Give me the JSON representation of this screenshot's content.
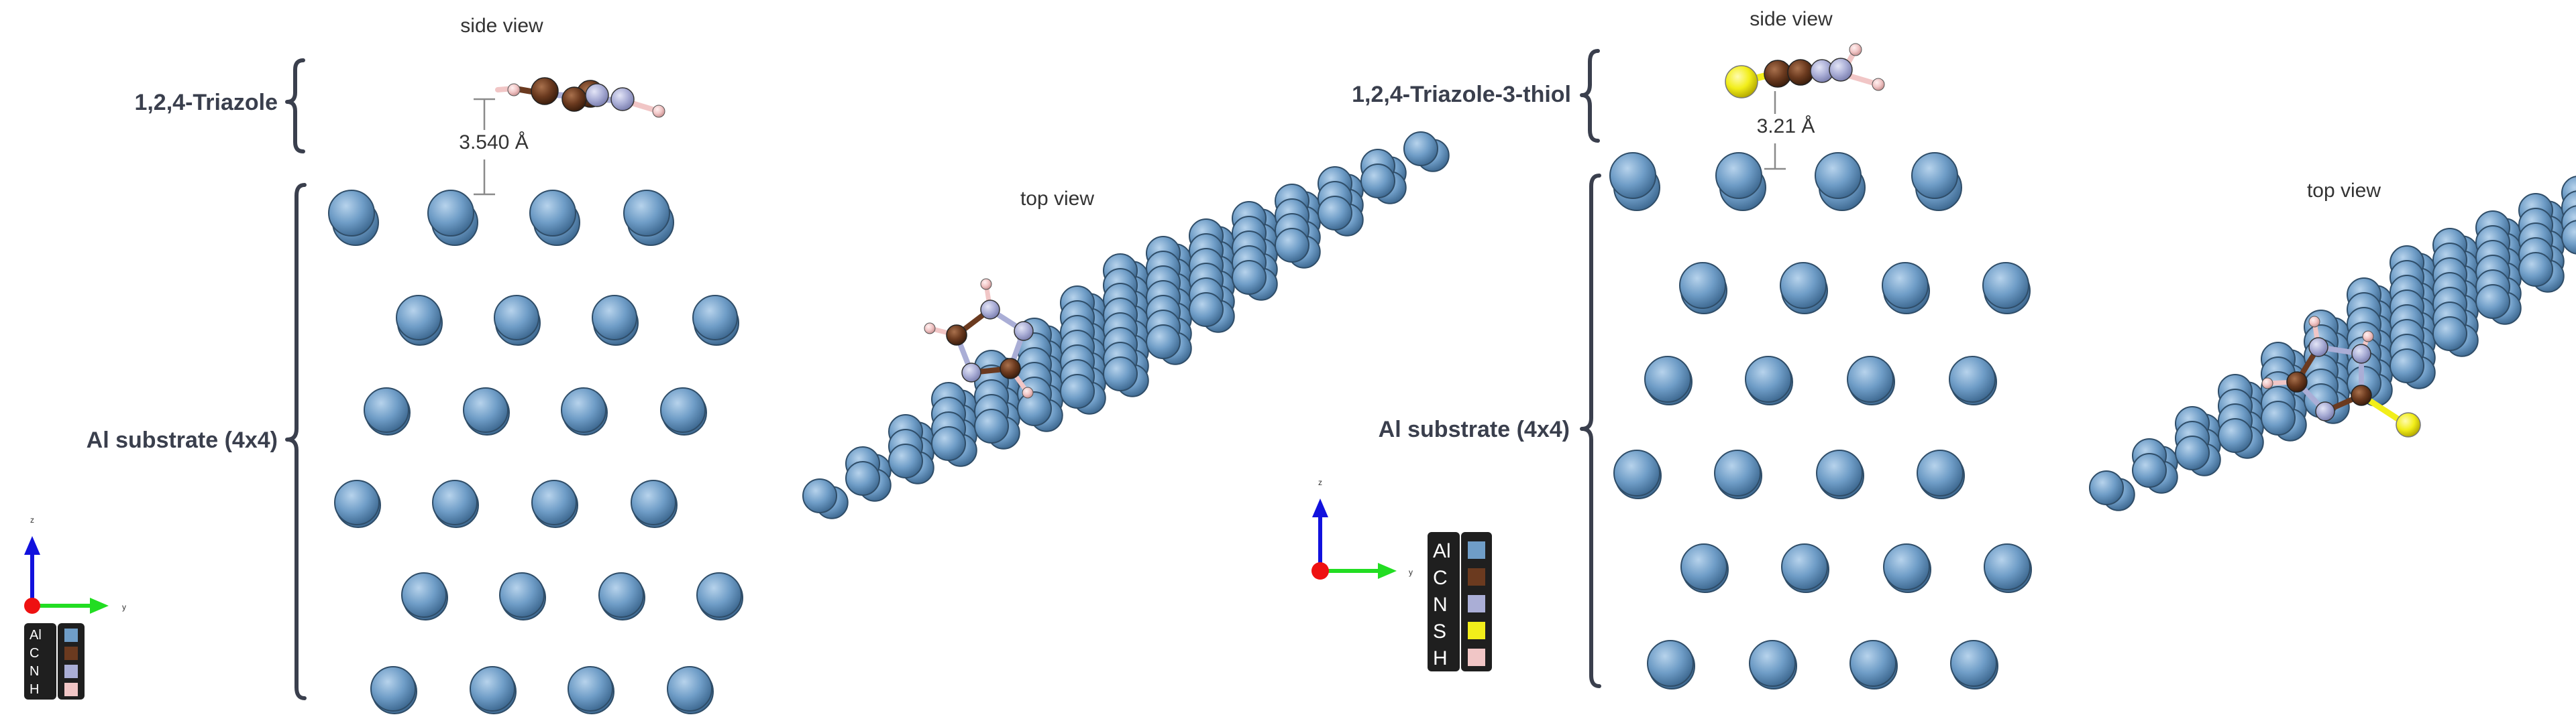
{
  "colors": {
    "Al": "#6f9dc7",
    "C": "#6b3a1f",
    "N": "#aaaed6",
    "S": "#f2ee1a",
    "H": "#f1c6c6",
    "x_axis": "#ee1111",
    "y_axis": "#22dd22",
    "z_axis": "#1111dd"
  },
  "left_panel": {
    "molecule_label": "1,2,4-Triazole",
    "substrate_label": "Al substrate (4x4)",
    "side_view_title": "side view",
    "top_view_title": "top view",
    "distance_label": "3.540 Å",
    "axes": {
      "z": "z",
      "y": "y"
    },
    "legend": [
      {
        "symbol": "Al",
        "element": "Al"
      },
      {
        "symbol": "C",
        "element": "C"
      },
      {
        "symbol": "N",
        "element": "N"
      },
      {
        "symbol": "H",
        "element": "H"
      }
    ]
  },
  "right_panel": {
    "molecule_label": "1,2,4-Triazole-3-thiol",
    "substrate_label": "Al substrate (4x4)",
    "side_view_title": "side view",
    "top_view_title": "top view",
    "distance_label": "3.21 Å",
    "axes": {
      "z": "z",
      "y": "y"
    },
    "legend": [
      {
        "symbol": "Al",
        "element": "Al"
      },
      {
        "symbol": "C",
        "element": "C"
      },
      {
        "symbol": "N",
        "element": "N"
      },
      {
        "symbol": "S",
        "element": "S"
      },
      {
        "symbol": "H",
        "element": "H"
      }
    ]
  }
}
